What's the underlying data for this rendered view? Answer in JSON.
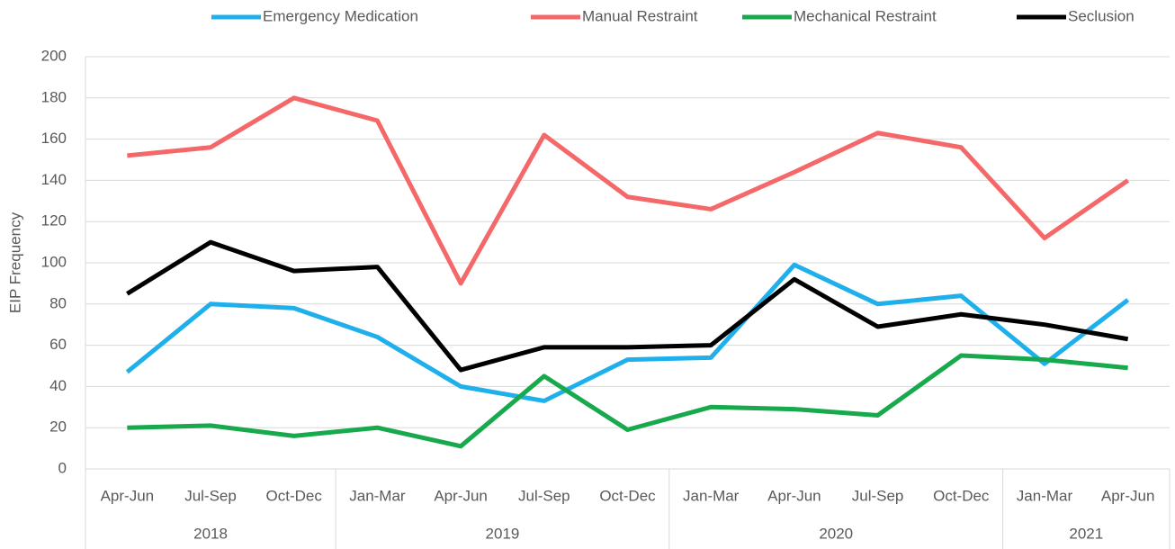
{
  "chart_data": {
    "type": "line",
    "y_label": "EIP Frequency",
    "category_groups": [
      {
        "label": "2018",
        "categories": [
          "Apr-Jun",
          "Jul-Sep",
          "Oct-Dec"
        ]
      },
      {
        "label": "2019",
        "categories": [
          "Jan-Mar",
          "Apr-Jun",
          "Jul-Sep",
          "Oct-Dec"
        ]
      },
      {
        "label": "2020",
        "categories": [
          "Jan-Mar",
          "Apr-Jun",
          "Jul-Sep",
          "Oct-Dec"
        ]
      },
      {
        "label": "2021",
        "categories": [
          "Jan-Mar",
          "Apr-Jun"
        ]
      }
    ],
    "series": [
      {
        "name": "Emergency Medication",
        "color": "#1fb0ec",
        "values": [
          47,
          80,
          78,
          64,
          40,
          33,
          53,
          54,
          99,
          80,
          84,
          51,
          82
        ]
      },
      {
        "name": "Manual Restraint",
        "color": "#f56869",
        "values": [
          152,
          156,
          180,
          169,
          90,
          162,
          132,
          126,
          144,
          163,
          156,
          112,
          140
        ]
      },
      {
        "name": "Mechanical Restraint",
        "color": "#17a94c",
        "values": [
          20,
          21,
          16,
          20,
          11,
          45,
          19,
          30,
          29,
          26,
          55,
          53,
          49
        ]
      },
      {
        "name": "Seclusion",
        "color": "#000000",
        "values": [
          85,
          110,
          96,
          98,
          48,
          59,
          59,
          60,
          92,
          69,
          75,
          70,
          63
        ]
      }
    ],
    "ylim": [
      0,
      200
    ],
    "yticks": [
      0,
      20,
      40,
      60,
      80,
      100,
      120,
      140,
      160,
      180,
      200
    ],
    "grid": true,
    "legend": "top"
  }
}
